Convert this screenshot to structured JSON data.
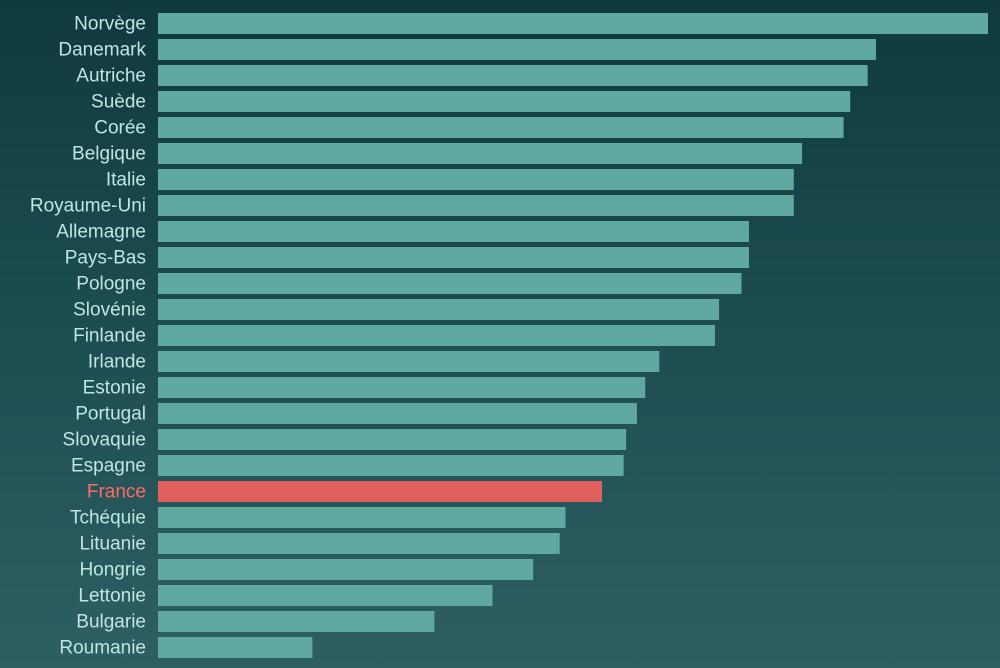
{
  "chart_data": {
    "type": "bar",
    "orientation": "horizontal",
    "title": "",
    "xlabel": "",
    "ylabel": "",
    "categories": [
      "Norvège",
      "Danemark",
      "Autriche",
      "Suède",
      "Corée",
      "Belgique",
      "Italie",
      "Royaume-Uni",
      "Allemagne",
      "Pays-Bas",
      "Pologne",
      "Slovénie",
      "Finlande",
      "Irlande",
      "Estonie",
      "Portugal",
      "Slovaquie",
      "Espagne",
      "France",
      "Tchéquie",
      "Lituanie",
      "Hongrie",
      "Lettonie",
      "Bulgarie",
      "Roumanie"
    ],
    "values": [
      100,
      86.5,
      85.5,
      83.4,
      82.6,
      77.6,
      76.6,
      76.6,
      71.2,
      71.2,
      70.3,
      67.6,
      67.1,
      60.4,
      58.7,
      57.7,
      56.4,
      56.1,
      53.5,
      49.1,
      48.4,
      45.2,
      40.3,
      33.3,
      18.6
    ],
    "xlim": [
      0,
      100
    ],
    "grid": false,
    "legend": "none",
    "highlight": "France",
    "colors": {
      "bar": "#5fa9a1",
      "highlight": "#e0605d",
      "label": "#bfe6df",
      "highlight_label": "#ff6b66"
    }
  }
}
